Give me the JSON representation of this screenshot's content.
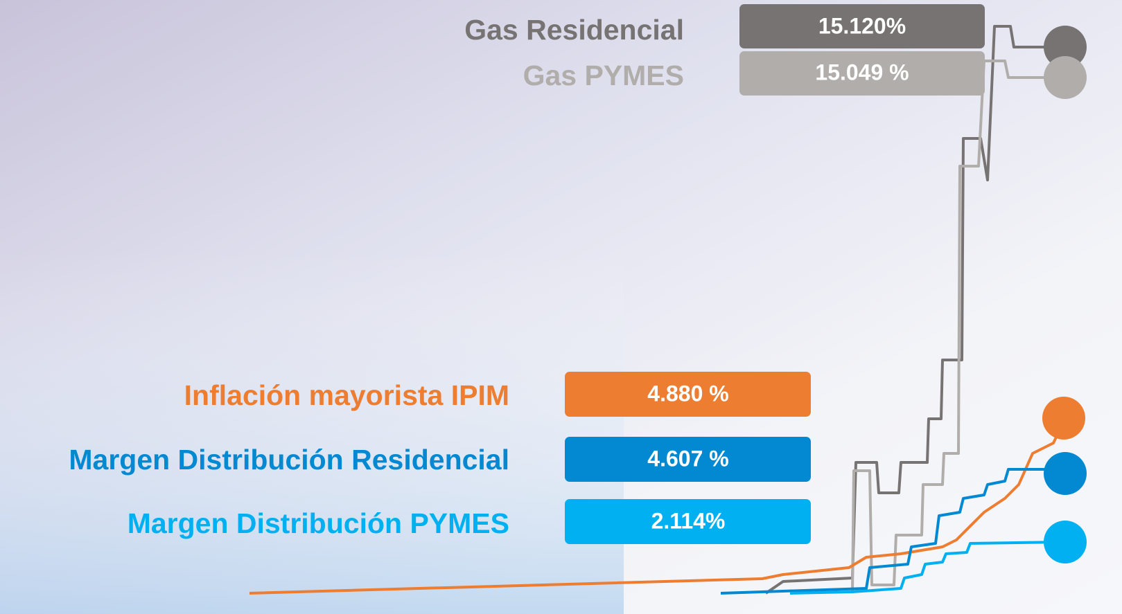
{
  "items": [
    {
      "label": "Gas Residencial",
      "value": "15.120%",
      "color": "#767372"
    },
    {
      "label": "Gas PYMES",
      "value": "15.049 %",
      "color": "#b0adab"
    },
    {
      "label": "Inflación mayorista IPIM",
      "value": "4.880 %",
      "color": "#ed7d31"
    },
    {
      "label": "Margen Distribución Residencial",
      "value": "4.607 %",
      "color": "#0289d1"
    },
    {
      "label": "Margen Distribución PYMES",
      "value": "2.114%",
      "color": "#00b0f0"
    }
  ]
}
